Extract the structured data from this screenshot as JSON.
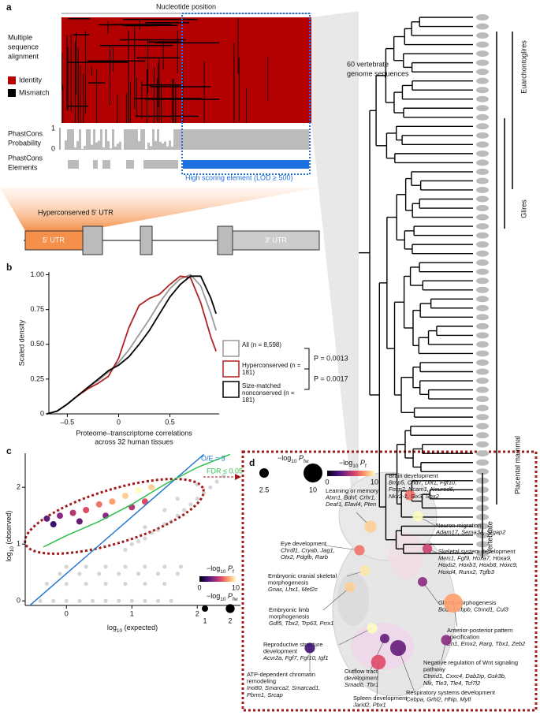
{
  "panel_labels": [
    "a",
    "b",
    "c",
    "d"
  ],
  "panel_a": {
    "axis_title": "Nucleotide position",
    "msa_label": [
      "Multiple",
      "sequence",
      "alignment"
    ],
    "legend": [
      "Identity",
      "Mismatch"
    ],
    "phastcons_prob": [
      "PhastCons",
      "Probability"
    ],
    "prob_ticks": [
      1,
      0
    ],
    "phastcons_el": [
      "PhastCons",
      "Elements"
    ],
    "high_scoring": "High scoring element (LOD ≥ 500)",
    "genomes": [
      "60 vertebrate",
      "genome sequences"
    ],
    "clades": [
      "Euarchontoglires",
      "Glires",
      "Placental mammal",
      "Vertebrate"
    ],
    "hyperconserved": "Hyperconserved 5′ UTR",
    "utr5": "5′ UTR",
    "utr3": "3′ UTR"
  },
  "chart_data": [
    {
      "type": "line",
      "ylabel": "Scaled density",
      "xlabel": [
        "Proteome–transcriptome correlations",
        "across 32 human tissues"
      ],
      "x": [
        -0.7,
        -0.6,
        -0.5,
        -0.4,
        -0.3,
        -0.2,
        -0.1,
        0,
        0.1,
        0.2,
        0.3,
        0.4,
        0.5,
        0.6,
        0.7,
        0.8,
        0.9,
        0.95
      ],
      "series": [
        {
          "name": "All (n = 8,598)",
          "color": "#999999",
          "values": [
            0,
            0.02,
            0.07,
            0.13,
            0.19,
            0.24,
            0.3,
            0.37,
            0.46,
            0.57,
            0.68,
            0.8,
            0.9,
            0.97,
            1.0,
            0.92,
            0.72,
            0.6
          ]
        },
        {
          "name": "Hyperconserved (n = 181)",
          "color": "#b22222",
          "values": [
            0,
            0.02,
            0.07,
            0.13,
            0.18,
            0.22,
            0.27,
            0.4,
            0.62,
            0.78,
            0.83,
            0.86,
            0.93,
            0.99,
            0.98,
            0.8,
            0.55,
            0.45
          ]
        },
        {
          "name": "Size-matched nonconserved (n = 181)",
          "color": "#000000",
          "values": [
            0,
            0.02,
            0.07,
            0.13,
            0.19,
            0.25,
            0.31,
            0.35,
            0.41,
            0.5,
            0.6,
            0.72,
            0.84,
            0.93,
            0.99,
            0.99,
            0.83,
            0.72
          ]
        }
      ],
      "xlim": [
        -0.68,
        0.98
      ],
      "ylim": [
        0,
        1.02
      ],
      "xticks": [
        {
          "value": -0.5,
          "label": "–0.5"
        },
        0,
        0.5
      ],
      "yticks": [
        0,
        0.25,
        {
          "value": 0.5,
          "label": "0.50"
        },
        0.75,
        {
          "value": 1,
          "label": "1.00"
        }
      ],
      "p_values": [
        "P = 0.0013",
        "P = 0.0017"
      ]
    },
    {
      "type": "scatter",
      "xlabel": [
        "log",
        "10",
        " (expected)"
      ],
      "ylabel": [
        "log",
        "10",
        " (observed)"
      ],
      "xlim": [
        -0.63,
        2.66
      ],
      "ylim": [
        -0.08,
        2.6
      ],
      "xticks": [
        0,
        1,
        2
      ],
      "yticks": [
        0,
        1,
        2
      ],
      "colormap": [
        "#000004",
        "#3b0f70",
        "#8c2981",
        "#de4968",
        "#fe9f6d",
        "#fcfdbf"
      ],
      "series": [
        {
          "color": "#888888",
          "x": [
            -0.4,
            -0.2,
            0,
            0.2,
            0.4,
            0.6,
            0.8,
            1.0,
            1.2,
            1.4,
            1.6,
            -0.3,
            0,
            0.3,
            0.6,
            0.9,
            1.2,
            1.5,
            -0.1,
            0.2,
            0.5,
            0.8,
            1.1,
            1.4,
            1.7,
            0,
            0.3,
            0.6,
            0.9,
            1.2,
            1.5,
            1.75,
            0.9,
            1.0,
            1.1,
            1.2,
            1.3,
            1.4,
            1.5,
            1.6,
            1.7,
            1.8,
            1.9,
            2.0,
            2.1,
            2.2,
            2.3,
            2.4,
            1.2,
            1.5,
            1.7,
            2.0
          ],
          "y": [
            0,
            0,
            0,
            0,
            0,
            0,
            0,
            0,
            0,
            0,
            0,
            0.301,
            0.301,
            0.301,
            0.301,
            0.301,
            0.301,
            0.301,
            0.477,
            0.477,
            0.477,
            0.477,
            0.477,
            0.477,
            0.477,
            0.602,
            0.602,
            0.602,
            0.602,
            0.602,
            0.602,
            0.602,
            0.9,
            1.0,
            1.05,
            1.1,
            1.2,
            1.25,
            1.35,
            1.4,
            1.5,
            1.6,
            1.7,
            1.8,
            1.9,
            2.0,
            2.1,
            2.2,
            1.3,
            1.6,
            1.8,
            2.05
          ]
        },
        {
          "x": [
            -0.3,
            -0.1,
            0.1,
            0.3,
            0.5,
            0.7,
            0.9,
            1.1,
            1.3,
            -0.2,
            0.2,
            0.6,
            1.0,
            1.2
          ],
          "y": [
            1.45,
            1.5,
            1.55,
            1.6,
            1.7,
            1.75,
            1.85,
            1.95,
            2.0,
            1.35,
            1.4,
            1.5,
            1.65,
            1.75
          ],
          "color_values": [
            3,
            4,
            5,
            6,
            7,
            8,
            9,
            10,
            9,
            2,
            3,
            4,
            5,
            6
          ]
        }
      ],
      "lines": [
        {
          "label": "O/E = 3",
          "color": "#1f77d0",
          "x": [
            -0.55,
            2.1
          ],
          "y": [
            -0.07,
            2.58
          ]
        },
        {
          "label": "FDR ≤ 0.05",
          "color": "#2fbf4a",
          "x": [
            -0.35,
            0,
            0.5,
            1.0,
            1.5,
            2.0,
            2.5
          ],
          "y": [
            0.95,
            1.15,
            1.4,
            1.7,
            2.05,
            2.35,
            2.58
          ]
        }
      ],
      "color_legend": {
        "label": [
          "−log",
          "10",
          " P",
          "f"
        ],
        "ticks": [
          0,
          10
        ]
      },
      "size_legend": {
        "label": [
          "−log",
          "10",
          " P",
          "fw"
        ],
        "values": [
          1,
          2
        ]
      }
    }
  ],
  "panel_d": {
    "size_legend": {
      "label": [
        "−log",
        "10",
        " P",
        "fw"
      ],
      "values": [
        2.5,
        10
      ]
    },
    "color_legend": {
      "label": [
        "−log",
        "10",
        " P",
        "f"
      ],
      "ticks": [
        0,
        10
      ]
    },
    "terms": [
      {
        "name": [
          "Brain development"
        ],
        "genes": [
          "Bmp5, Chd7, Dlx1, Fgf10,",
          "Foxp2, Ncam1, Neurod6,",
          "Nkx2-1, Six3, Sox2"
        ],
        "pf": 7,
        "pfw": 3
      },
      {
        "name": [
          "Learning or memory"
        ],
        "genes": [
          "Atxn1, Bdnf, Crhr1,",
          "Deaf1, Elavl4, Pten"
        ],
        "pf": 9,
        "pfw": 4
      },
      {
        "name": [
          "Neuron migration"
        ],
        "genes": [
          "Adam17, Sema3a, Srgap2"
        ],
        "pf": 10,
        "pfw": 3
      },
      {
        "name": [
          "Eye development"
        ],
        "genes": [
          "Chrdl1, Cryab, Jag1,",
          "Otx2, Pdgfb, Rarb"
        ],
        "pf": 7,
        "pfw": 3
      },
      {
        "name": [
          "Skeletal system development"
        ],
        "genes": [
          "Meis1, Fgf9, Hoxa7, Hoxa9,",
          "Hoxb2, Hoxb3, Hoxb8, Hoxc9,",
          "Hoxd4, Runx2, Tgfb3"
        ],
        "pf": 5.5,
        "pfw": 2.6
      },
      {
        "name": [
          "Embryonic cranial skeletal",
          "morphogenesis"
        ],
        "genes": [
          "Gnas, Lhx1, Mef2c"
        ],
        "pf": 9.5,
        "pfw": 3
      },
      {
        "name": [
          "Gland morphogenesis"
        ],
        "genes": [
          "Bcl2, Cebpb, Ctnnd1, Cul3"
        ],
        "pf": 4,
        "pfw": 2.5
      },
      {
        "name": [
          "Embryonic limb",
          "morphogenesis"
        ],
        "genes": [
          "Gdf5, Tbx2, Trp63, Prrx1"
        ],
        "pf": 9,
        "pfw": 3
      },
      {
        "name": [
          "Anterior-posterior pattern",
          "specification"
        ],
        "genes": [
          "En1, Emx2, Rarg, Tbx1, Zeb2"
        ],
        "pf": 8,
        "pfw": 10
      },
      {
        "name": [
          "Reproductive structure",
          "development"
        ],
        "genes": [
          "Acvr2a, Fgf7, Fgf10, Igf1"
        ],
        "pf": 10,
        "pfw": 3
      },
      {
        "name": [
          "ATP-dependent chromatin",
          "remodeling"
        ],
        "genes": [
          "Ino80, Smarca2, Smarcad1,",
          "Pbrm1, Srcap"
        ],
        "pf": 2,
        "pfw": 3
      },
      {
        "name": [
          "Outflow tract",
          "development"
        ],
        "genes": [
          "Smad6, Tbr1"
        ],
        "pf": 3,
        "pfw": 2.5
      },
      {
        "name": [
          "Negative regulation of Wnt signaling",
          "pathway"
        ],
        "genes": [
          "Ctnnd1, Cxxc4, Dab2ip, Gsk3b,",
          "Nlk, Tle3, Tle4, Tcf7l2"
        ],
        "pf": 4,
        "pfw": 3
      },
      {
        "name": [
          "Respiratory systems development"
        ],
        "genes": [
          "Cebpa, Grhl2, Hhip, Mytl"
        ],
        "pf": 3,
        "pfw": 7
      },
      {
        "name": [
          "Spleen development"
        ],
        "genes": [
          "Jarid2, Pbx1"
        ],
        "pf": 6,
        "pfw": 6
      }
    ]
  }
}
